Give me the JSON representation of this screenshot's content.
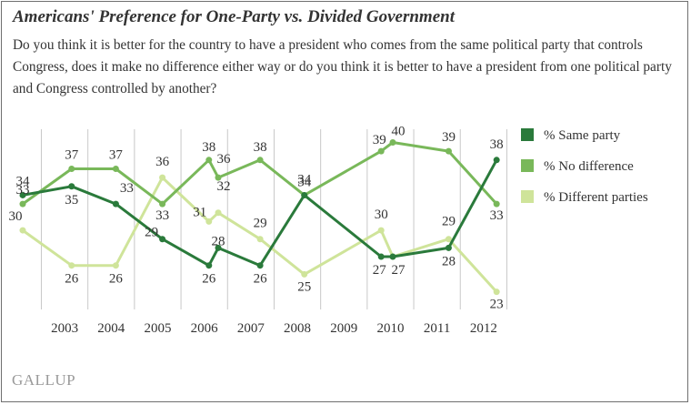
{
  "title": "Americans' Preference for One-Party vs. Divided Government",
  "question": "Do you think it is better for the country to have a president who comes from the same political party that controls Congress, does it make no difference either way or do you think it is better to have a president from one political party and Congress controlled by another?",
  "brand": "GALLUP",
  "colors": {
    "same_party": "#2a7a3b",
    "no_difference": "#79b85a",
    "different_parties": "#cfe49a",
    "gridline": "#c8c8c8",
    "label_text": "#333333"
  },
  "chart_data": {
    "type": "line",
    "title": "Americans' Preference for One-Party vs. Divided Government",
    "xlabel": "",
    "ylabel": "",
    "x_ticks": [
      "2003",
      "2004",
      "2005",
      "2006",
      "2007",
      "2008",
      "2009",
      "2010",
      "2011",
      "2012"
    ],
    "xlim": [
      2002.6,
      2013.05
    ],
    "ylim": [
      21,
      41.5
    ],
    "grid": "vertical",
    "legend": "right",
    "series": [
      {
        "name": "% Same party",
        "color": "#2a7a3b",
        "points": [
          {
            "x": 2002.6,
            "y": 34,
            "label": "34"
          },
          {
            "x": 2003.65,
            "y": 35,
            "label": "35"
          },
          {
            "x": 2004.6,
            "y": 33,
            "label": "33"
          },
          {
            "x": 2005.6,
            "y": 29,
            "label": "29"
          },
          {
            "x": 2006.6,
            "y": 26,
            "label": "26"
          },
          {
            "x": 2006.8,
            "y": 28,
            "label": "28"
          },
          {
            "x": 2007.7,
            "y": 26,
            "label": "26"
          },
          {
            "x": 2008.65,
            "y": 34,
            "label": "34"
          },
          {
            "x": 2010.3,
            "y": 27,
            "label": "27"
          },
          {
            "x": 2010.55,
            "y": 27,
            "label": "27"
          },
          {
            "x": 2011.75,
            "y": 28,
            "label": "28"
          },
          {
            "x": 2012.78,
            "y": 38,
            "label": "38"
          }
        ]
      },
      {
        "name": "% No difference",
        "color": "#79b85a",
        "points": [
          {
            "x": 2002.6,
            "y": 33,
            "label": "33"
          },
          {
            "x": 2003.65,
            "y": 37,
            "label": "37"
          },
          {
            "x": 2004.6,
            "y": 37,
            "label": "37"
          },
          {
            "x": 2005.6,
            "y": 33,
            "label": "33"
          },
          {
            "x": 2006.6,
            "y": 38,
            "label": "38"
          },
          {
            "x": 2006.8,
            "y": 36,
            "label": "36"
          },
          {
            "x": 2007.7,
            "y": 38,
            "label": "38"
          },
          {
            "x": 2008.65,
            "y": 34,
            "label": "34"
          },
          {
            "x": 2010.3,
            "y": 39,
            "label": "39"
          },
          {
            "x": 2010.55,
            "y": 40,
            "label": "40"
          },
          {
            "x": 2011.75,
            "y": 39,
            "label": "39"
          },
          {
            "x": 2012.78,
            "y": 33,
            "label": "33"
          }
        ]
      },
      {
        "name": "% Different parties",
        "color": "#cfe49a",
        "points": [
          {
            "x": 2002.6,
            "y": 30,
            "label": "30"
          },
          {
            "x": 2003.65,
            "y": 26,
            "label": "26"
          },
          {
            "x": 2004.6,
            "y": 26,
            "label": "26"
          },
          {
            "x": 2005.6,
            "y": 36,
            "label": "36"
          },
          {
            "x": 2006.6,
            "y": 31,
            "label": "31"
          },
          {
            "x": 2006.8,
            "y": 32,
            "label": "32"
          },
          {
            "x": 2007.7,
            "y": 29,
            "label": "29"
          },
          {
            "x": 2008.65,
            "y": 25,
            "label": "25"
          },
          {
            "x": 2010.3,
            "y": 30,
            "label": "30"
          },
          {
            "x": 2010.55,
            "y": 27,
            "label": "27"
          },
          {
            "x": 2011.75,
            "y": 29,
            "label": "29"
          },
          {
            "x": 2012.78,
            "y": 23,
            "label": "23"
          }
        ]
      }
    ]
  }
}
